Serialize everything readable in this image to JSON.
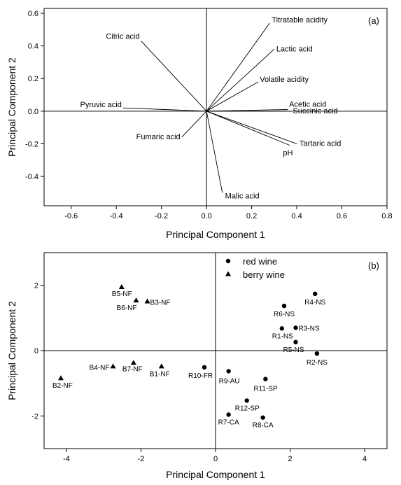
{
  "chart_data": [
    {
      "type": "scatter",
      "subtype": "loading-biplot",
      "panel_label": "(a)",
      "xlabel": "Principal Component 1",
      "ylabel": "Principal Component 2",
      "xlim": [
        -0.72,
        0.8
      ],
      "ylim": [
        -0.58,
        0.63
      ],
      "xticks": [
        "-0.6",
        "-0.4",
        "-0.2",
        "0.0",
        "0.2",
        "0.4",
        "0.6",
        "0.8"
      ],
      "xtick_values": [
        -0.6,
        -0.4,
        -0.2,
        0.0,
        0.2,
        0.4,
        0.6,
        0.8
      ],
      "yticks": [
        "0.6",
        "0.4",
        "0.2",
        "0.0",
        "-0.2",
        "-0.4"
      ],
      "ytick_values": [
        0.6,
        0.4,
        0.2,
        0.0,
        -0.2,
        -0.4
      ],
      "vectors": [
        {
          "label": "Titratable acidity",
          "x": 0.28,
          "y": 0.54
        },
        {
          "label": "Lactic acid",
          "x": 0.3,
          "y": 0.38
        },
        {
          "label": "Volatile acidity",
          "x": 0.23,
          "y": 0.18
        },
        {
          "label": "Citric acid",
          "x": -0.29,
          "y": 0.43
        },
        {
          "label": "Pyruvic acid",
          "x": -0.37,
          "y": 0.02
        },
        {
          "label": "Acetic acid",
          "x": 0.36,
          "y": 0.01
        },
        {
          "label": "Succinic acid",
          "x": 0.37,
          "y": 0.0
        },
        {
          "label": "Fumaric acid",
          "x": -0.11,
          "y": -0.16
        },
        {
          "label": "Tartaric acid",
          "x": 0.4,
          "y": -0.2
        },
        {
          "label": "pH",
          "x": 0.37,
          "y": -0.21
        },
        {
          "label": "Malic acid",
          "x": 0.07,
          "y": -0.5
        }
      ]
    },
    {
      "type": "scatter",
      "panel_label": "(b)",
      "xlabel": "Principal Component 1",
      "ylabel": "Principal Component 2",
      "xlim": [
        -4.6,
        4.6
      ],
      "ylim": [
        -3.0,
        3.0
      ],
      "xticks": [
        "-4",
        "-2",
        "0",
        "2",
        "4"
      ],
      "xtick_values": [
        -4,
        -2,
        0,
        2,
        4
      ],
      "yticks": [
        "2",
        "0",
        "-2"
      ],
      "ytick_values": [
        2,
        0,
        -2
      ],
      "legend": {
        "position": "top",
        "entries": [
          "red wine",
          "berry wine"
        ]
      },
      "series": [
        {
          "name": "red wine",
          "marker": "circle",
          "points": [
            {
              "label": "R4-NS",
              "x": 2.67,
              "y": 1.74
            },
            {
              "label": "R6-NS",
              "x": 1.84,
              "y": 1.37
            },
            {
              "label": "R3-NS",
              "x": 2.15,
              "y": 0.7
            },
            {
              "label": "R1-NS",
              "x": 1.78,
              "y": 0.68
            },
            {
              "label": "R5-NS",
              "x": 2.15,
              "y": 0.26
            },
            {
              "label": "R2-NS",
              "x": 2.72,
              "y": -0.09
            },
            {
              "label": "R10-FR",
              "x": -0.3,
              "y": -0.51
            },
            {
              "label": "R9-AU",
              "x": 0.35,
              "y": -0.63
            },
            {
              "label": "R11-SP",
              "x": 1.34,
              "y": -0.87
            },
            {
              "label": "R12-SP",
              "x": 0.84,
              "y": -1.53
            },
            {
              "label": "R7-CA",
              "x": 0.35,
              "y": -1.96
            },
            {
              "label": "R8-CA",
              "x": 1.27,
              "y": -2.05
            }
          ]
        },
        {
          "name": "berry wine",
          "marker": "triangle",
          "points": [
            {
              "label": "B5-NF",
              "x": -2.52,
              "y": 1.95
            },
            {
              "label": "B6-NF",
              "x": -2.13,
              "y": 1.54
            },
            {
              "label": "B3-NF",
              "x": -1.83,
              "y": 1.51
            },
            {
              "label": "B4-NF",
              "x": -2.75,
              "y": -0.48
            },
            {
              "label": "B7-NF",
              "x": -2.2,
              "y": -0.37
            },
            {
              "label": "B1-NF",
              "x": -1.45,
              "y": -0.48
            },
            {
              "label": "B2-NF",
              "x": -4.15,
              "y": -0.84
            }
          ]
        }
      ]
    }
  ]
}
